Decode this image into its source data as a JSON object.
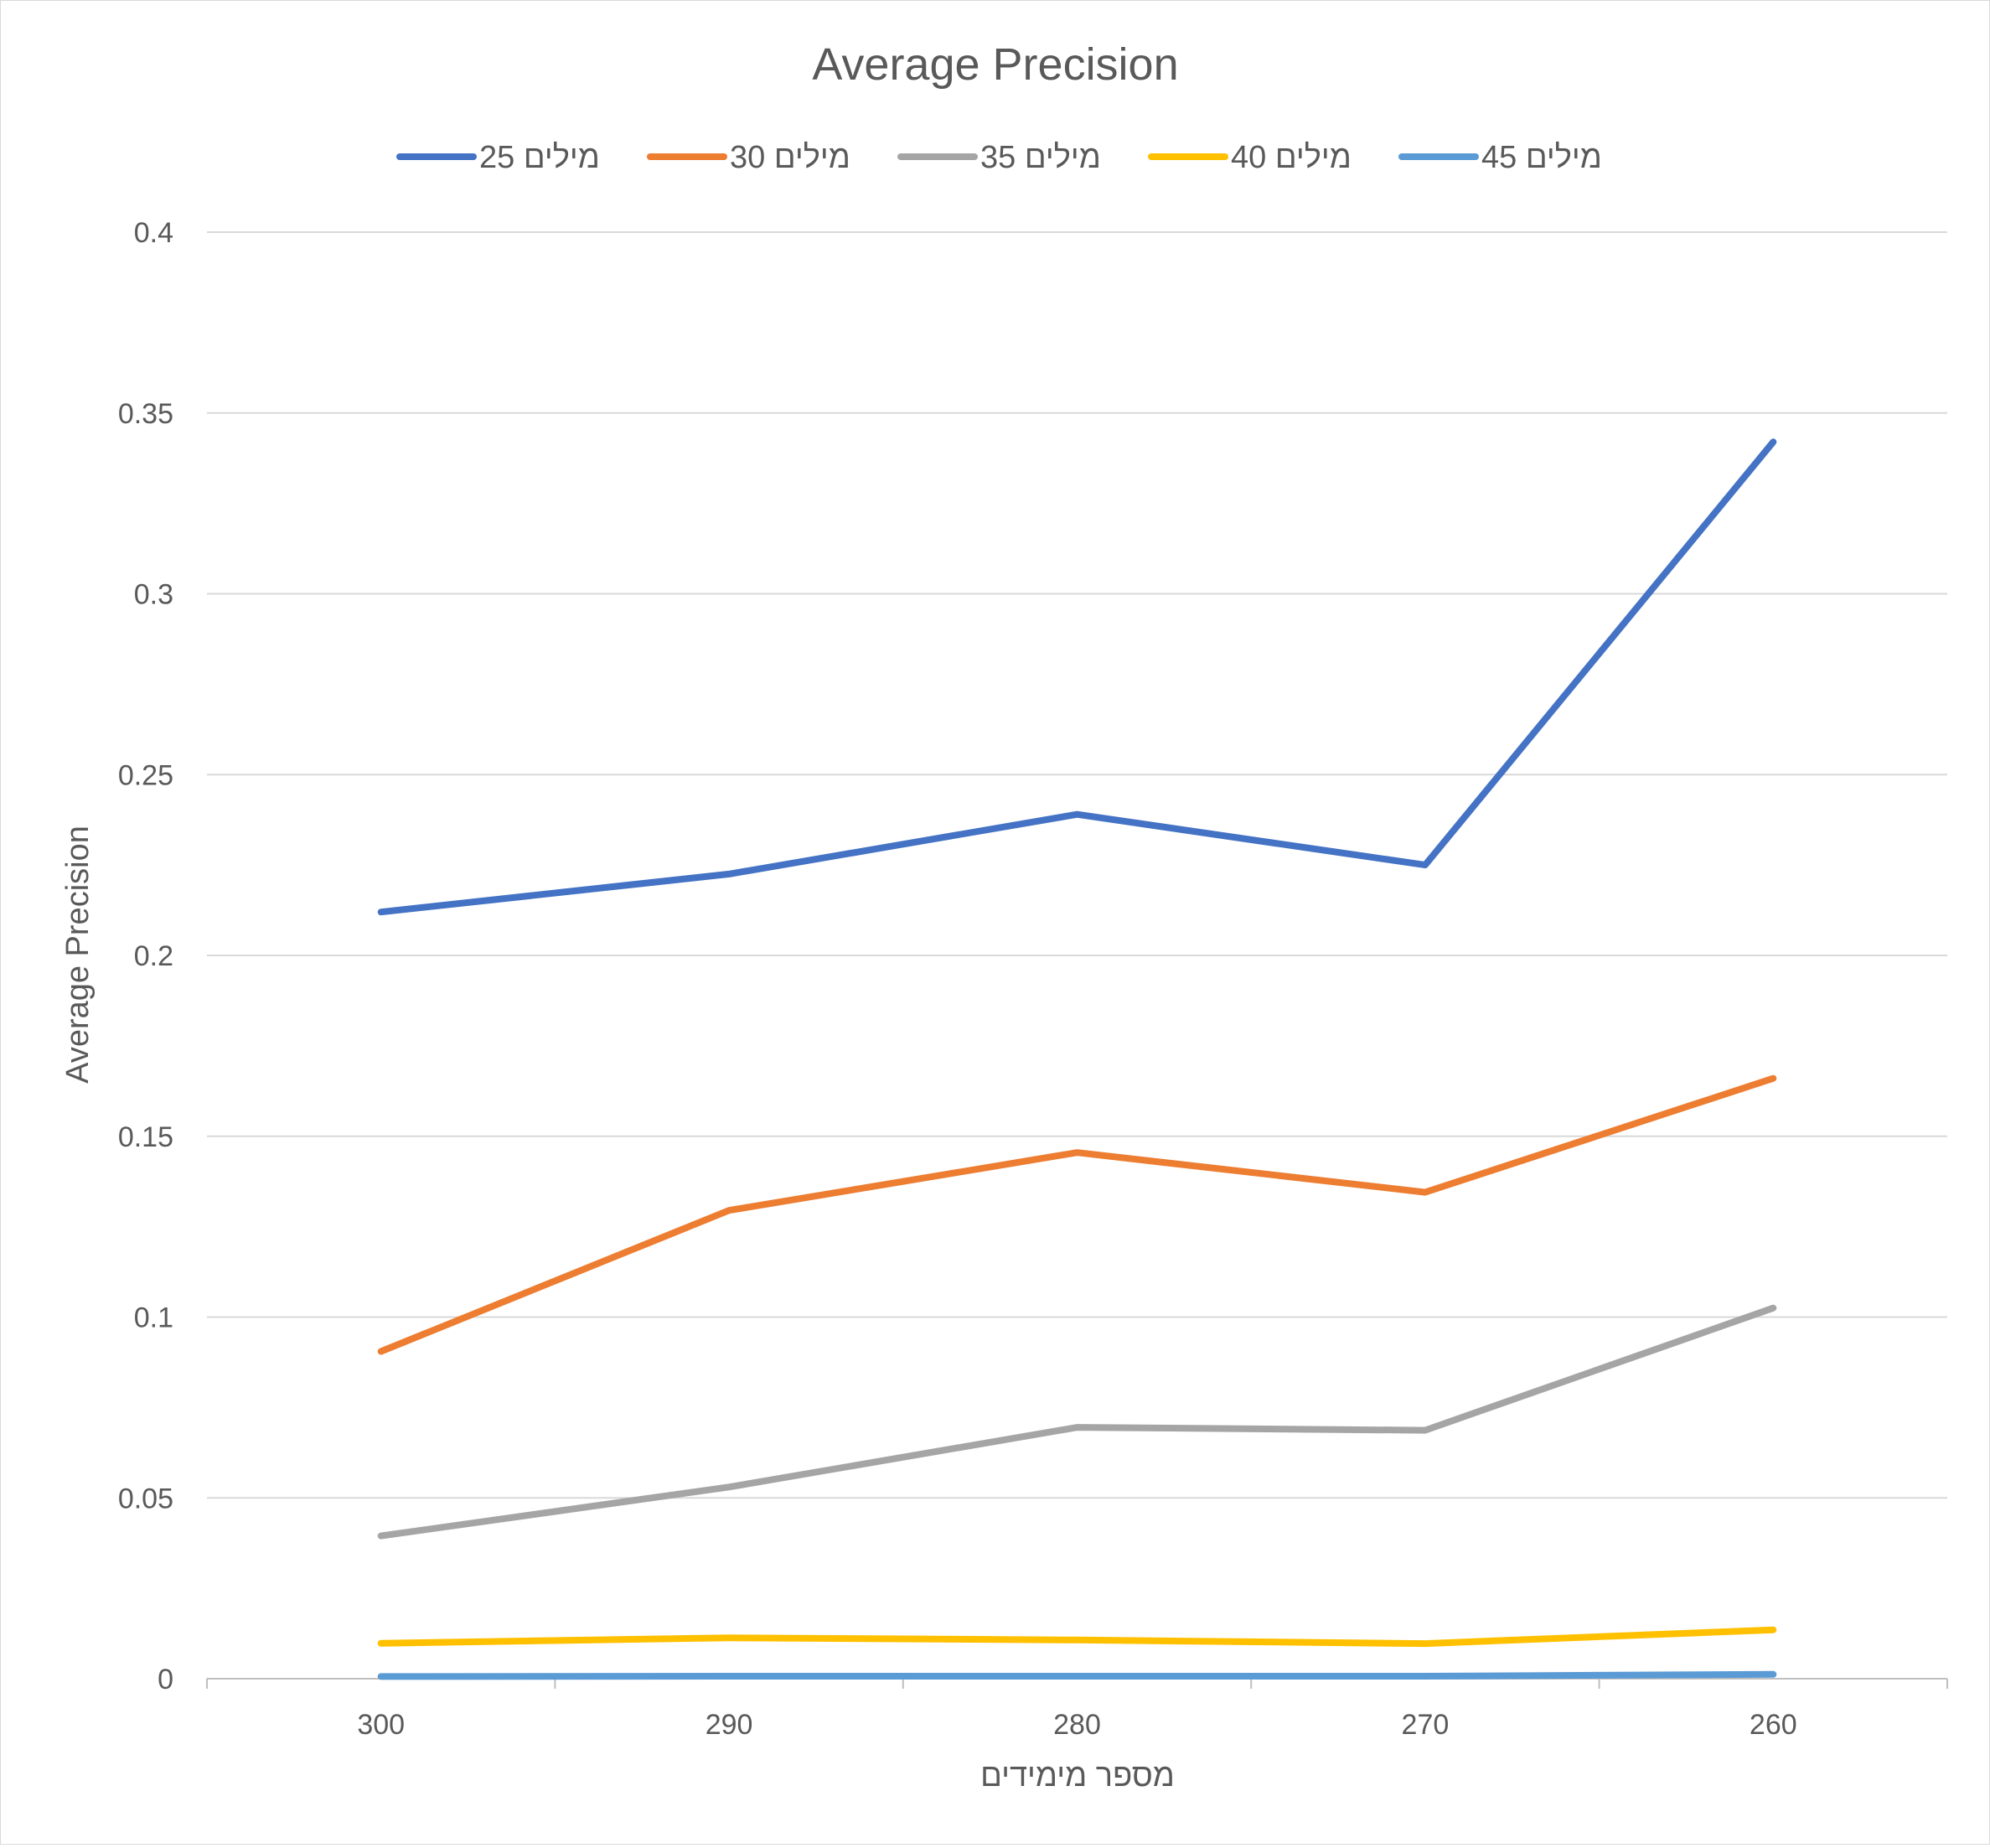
{
  "chart_data": {
    "type": "line",
    "title": "Average Precision",
    "xlabel": "מספר מימידים",
    "ylabel": "Average Precision",
    "categories": [
      "300",
      "290",
      "280",
      "270",
      "260"
    ],
    "ylim": [
      0,
      0.4
    ],
    "yticks": [
      "0",
      "0.05",
      "0.1",
      "0.15",
      "0.2",
      "0.25",
      "0.3",
      "0.35",
      "0.4"
    ],
    "grid": true,
    "legend_position": "top",
    "series": [
      {
        "name": "25 מילים",
        "color": "#4472C4",
        "values": [
          0.212,
          0.2225,
          0.239,
          0.225,
          0.342
        ]
      },
      {
        "name": "30 מילים",
        "color": "#ED7D31",
        "values": [
          0.0905,
          0.1295,
          0.1455,
          0.1345,
          0.166
        ]
      },
      {
        "name": "35 מילים",
        "color": "#A5A5A5",
        "values": [
          0.0395,
          0.053,
          0.0695,
          0.0687,
          0.1025
        ]
      },
      {
        "name": "40 מילים",
        "color": "#FFC000",
        "values": [
          0.0098,
          0.0113,
          0.0107,
          0.0097,
          0.0135
        ]
      },
      {
        "name": "45 מילים",
        "color": "#5B9BD5",
        "values": [
          0.0006,
          0.0007,
          0.0007,
          0.0007,
          0.0012
        ]
      }
    ]
  }
}
